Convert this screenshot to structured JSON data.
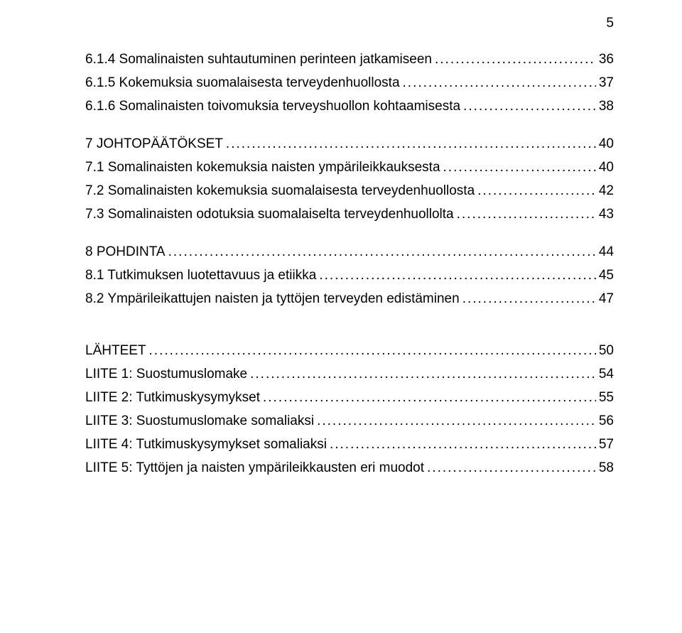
{
  "page_number": "5",
  "font_size_pt": 19,
  "entries": [
    {
      "level": 1,
      "label": "6.1.4 Somalinaisten suhtautuminen perinteen jatkamiseen",
      "page": "36",
      "gap_before": false
    },
    {
      "level": 1,
      "label": "6.1.5 Kokemuksia suomalaisesta terveydenhuollosta",
      "page": "37",
      "gap_before": false
    },
    {
      "level": 1,
      "label": "6.1.6 Somalinaisten toivomuksia terveyshuollon kohtaamisesta",
      "page": "38",
      "gap_before": false
    },
    {
      "level": 0,
      "label": "7 JOHTOPÄÄTÖKSET",
      "page": "40",
      "gap_before": true
    },
    {
      "level": 1,
      "label": "7.1 Somalinaisten kokemuksia naisten ympärileikkauksesta",
      "page": "40",
      "gap_before": false
    },
    {
      "level": 1,
      "label": "7.2 Somalinaisten kokemuksia suomalaisesta terveydenhuollosta",
      "page": "42",
      "gap_before": false
    },
    {
      "level": 1,
      "label": "7.3 Somalinaisten odotuksia suomalaiselta terveydenhuollolta",
      "page": "43",
      "gap_before": false
    },
    {
      "level": 0,
      "label": "8 POHDINTA",
      "page": "44",
      "gap_before": true
    },
    {
      "level": 1,
      "label": "8.1 Tutkimuksen luotettavuus ja etiikka",
      "page": "45",
      "gap_before": false
    },
    {
      "level": 1,
      "label": "8.2 Ympärileikattujen naisten ja tyttöjen terveyden edistäminen",
      "page": "47",
      "gap_before": false
    },
    {
      "level": 0,
      "label": "LÄHTEET",
      "page": "50",
      "gap_before": true,
      "extra_gap": true
    },
    {
      "level": 0,
      "label": "LIITE 1: Suostumuslomake",
      "page": "54",
      "gap_before": false
    },
    {
      "level": 0,
      "label": "LIITE 2: Tutkimuskysymykset",
      "page": "55",
      "gap_before": false
    },
    {
      "level": 0,
      "label": "LIITE 3: Suostumuslomake somaliaksi",
      "page": "56",
      "gap_before": false
    },
    {
      "level": 0,
      "label": "LIITE 4: Tutkimuskysymykset somaliaksi",
      "page": "57",
      "gap_before": false
    },
    {
      "level": 0,
      "label": "LIITE 5: Tyttöjen ja naisten ympärileikkausten eri muodot",
      "page": "58",
      "gap_before": false
    }
  ]
}
